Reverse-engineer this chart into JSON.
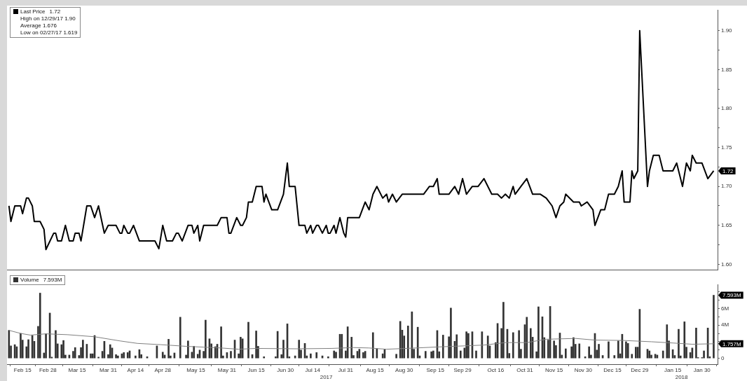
{
  "chart_data": [
    {
      "type": "line",
      "legend": "top left",
      "tick_labels": "y",
      "xlim": [
        "2017-02-07",
        "2018-02-07"
      ],
      "ylim": [
        1.593,
        1.926
      ],
      "yticks": [
        {
          "value": 1.6,
          "label": "1.60"
        },
        {
          "value": 1.625,
          "label": null
        },
        {
          "value": 1.65,
          "label": "1.65"
        },
        {
          "value": 1.675,
          "label": null
        },
        {
          "value": 1.7,
          "label": "1.70"
        },
        {
          "value": 1.725,
          "label": null
        },
        {
          "value": 1.75,
          "label": "1.75"
        },
        {
          "value": 1.775,
          "label": null
        },
        {
          "value": 1.8,
          "label": "1.80"
        },
        {
          "value": 1.825,
          "label": null
        },
        {
          "value": 1.85,
          "label": "1.85"
        },
        {
          "value": 1.875,
          "label": null
        },
        {
          "value": 1.9,
          "label": "1.90"
        }
      ],
      "annotations": [
        {
          "text": "1.72",
          "x": "2018-02-05",
          "y": 1.72
        },
        "1.72",
        "High on 12/29/17 1.90",
        "Average 1.676",
        "Low on 02/27/17 1.619"
      ],
      "series": [
        {
          "name": "Last Price",
          "color": "#000000",
          "x": [
            "2017-02-08",
            "2017-02-09",
            "2017-02-11",
            "2017-02-14",
            "2017-02-15",
            "2017-02-17",
            "2017-02-18",
            "2017-02-20",
            "2017-02-21",
            "2017-02-24",
            "2017-02-26",
            "2017-02-27",
            "2017-03-03",
            "2017-03-04",
            "2017-03-05",
            "2017-03-07",
            "2017-03-09",
            "2017-03-11",
            "2017-03-13",
            "2017-03-14",
            "2017-03-16",
            "2017-03-17",
            "2017-03-20",
            "2017-03-22",
            "2017-03-24",
            "2017-03-26",
            "2017-03-29",
            "2017-03-31",
            "2017-04-04",
            "2017-04-06",
            "2017-04-07",
            "2017-04-08",
            "2017-04-10",
            "2017-04-11",
            "2017-04-13",
            "2017-04-16",
            "2017-04-24",
            "2017-04-26",
            "2017-04-28",
            "2017-04-30",
            "2017-05-03",
            "2017-05-05",
            "2017-05-06",
            "2017-05-08",
            "2017-05-11",
            "2017-05-13",
            "2017-05-14",
            "2017-05-16",
            "2017-05-17",
            "2017-05-19",
            "2017-05-26",
            "2017-05-28",
            "2017-05-31",
            "2017-06-01",
            "2017-06-02",
            "2017-06-05",
            "2017-06-07",
            "2017-06-08",
            "2017-06-10",
            "2017-06-11",
            "2017-06-13",
            "2017-06-15",
            "2017-06-18",
            "2017-06-19",
            "2017-06-20",
            "2017-06-23",
            "2017-06-26",
            "2017-06-29",
            "2017-07-01",
            "2017-07-02",
            "2017-07-05",
            "2017-07-07",
            "2017-07-10",
            "2017-07-11",
            "2017-07-13",
            "2017-07-14",
            "2017-07-16",
            "2017-07-17",
            "2017-07-19",
            "2017-07-21",
            "2017-07-22",
            "2017-07-23",
            "2017-07-25",
            "2017-07-26",
            "2017-07-28",
            "2017-07-30",
            "2017-07-31",
            "2017-08-01",
            "2017-08-07",
            "2017-08-10",
            "2017-08-12",
            "2017-08-14",
            "2017-08-16",
            "2017-08-19",
            "2017-08-21",
            "2017-08-22",
            "2017-08-24",
            "2017-08-26",
            "2017-08-29",
            "2017-09-01",
            "2017-09-05",
            "2017-09-09",
            "2017-09-12",
            "2017-09-14",
            "2017-09-16",
            "2017-09-17",
            "2017-09-22",
            "2017-09-25",
            "2017-09-27",
            "2017-09-29",
            "2017-10-01",
            "2017-10-04",
            "2017-10-07",
            "2017-10-10",
            "2017-10-14",
            "2017-10-17",
            "2017-10-19",
            "2017-10-21",
            "2017-10-23",
            "2017-10-25",
            "2017-10-26",
            "2017-10-29",
            "2017-11-01",
            "2017-11-04",
            "2017-11-08",
            "2017-11-11",
            "2017-11-14",
            "2017-11-16",
            "2017-11-18",
            "2017-11-20",
            "2017-11-21",
            "2017-11-25",
            "2017-11-28",
            "2017-11-29",
            "2017-12-02",
            "2017-12-05",
            "2017-12-06",
            "2017-12-09",
            "2017-12-11",
            "2017-12-13",
            "2017-12-16",
            "2017-12-18",
            "2017-12-20",
            "2017-12-21",
            "2017-12-24",
            "2017-12-25",
            "2017-12-26",
            "2017-12-28",
            "2017-12-29",
            "2018-01-02",
            "2018-01-03",
            "2018-01-05",
            "2018-01-08",
            "2018-01-10",
            "2018-01-15",
            "2018-01-17",
            "2018-01-18",
            "2018-01-20",
            "2018-01-22",
            "2018-01-24",
            "2018-01-25",
            "2018-01-27",
            "2018-01-30",
            "2018-02-02",
            "2018-02-05"
          ],
          "values": [
            1.675,
            1.655,
            1.675,
            1.675,
            1.665,
            1.685,
            1.685,
            1.675,
            1.655,
            1.655,
            1.645,
            1.619,
            1.64,
            1.64,
            1.63,
            1.63,
            1.65,
            1.63,
            1.63,
            1.64,
            1.64,
            1.63,
            1.675,
            1.675,
            1.66,
            1.675,
            1.64,
            1.65,
            1.65,
            1.64,
            1.64,
            1.65,
            1.64,
            1.64,
            1.65,
            1.63,
            1.63,
            1.62,
            1.65,
            1.63,
            1.63,
            1.64,
            1.64,
            1.63,
            1.65,
            1.65,
            1.64,
            1.65,
            1.63,
            1.65,
            1.65,
            1.66,
            1.66,
            1.64,
            1.64,
            1.66,
            1.65,
            1.65,
            1.66,
            1.68,
            1.68,
            1.7,
            1.7,
            1.68,
            1.69,
            1.67,
            1.67,
            1.69,
            1.73,
            1.7,
            1.7,
            1.65,
            1.65,
            1.64,
            1.65,
            1.64,
            1.65,
            1.65,
            1.64,
            1.65,
            1.64,
            1.64,
            1.65,
            1.64,
            1.66,
            1.64,
            1.635,
            1.66,
            1.66,
            1.68,
            1.67,
            1.69,
            1.7,
            1.685,
            1.69,
            1.68,
            1.69,
            1.68,
            1.69,
            1.69,
            1.69,
            1.69,
            1.7,
            1.7,
            1.71,
            1.69,
            1.69,
            1.7,
            1.69,
            1.71,
            1.69,
            1.7,
            1.7,
            1.71,
            1.69,
            1.69,
            1.685,
            1.69,
            1.685,
            1.7,
            1.69,
            1.7,
            1.71,
            1.69,
            1.69,
            1.685,
            1.675,
            1.66,
            1.675,
            1.68,
            1.69,
            1.68,
            1.68,
            1.675,
            1.68,
            1.67,
            1.65,
            1.67,
            1.67,
            1.69,
            1.69,
            1.7,
            1.72,
            1.68,
            1.68,
            1.72,
            1.71,
            1.72,
            1.9,
            1.7,
            1.72,
            1.74,
            1.74,
            1.72,
            1.72,
            1.73,
            1.72,
            1.7,
            1.73,
            1.72,
            1.74,
            1.73,
            1.73,
            1.71,
            1.72
          ]
        }
      ]
    },
    {
      "type": "bar",
      "legend": "top left",
      "xlim": [
        "2017-02-07",
        "2018-02-07"
      ],
      "xticks": [
        {
          "value": "2017-02-15",
          "label": "Feb 15"
        },
        {
          "value": "2017-02-28",
          "label": "Feb 28"
        },
        {
          "value": "2017-03-15",
          "label": "Mar 15"
        },
        {
          "value": "2017-03-31",
          "label": "Mar 31"
        },
        {
          "value": "2017-04-14",
          "label": "Apr 14"
        },
        {
          "value": "2017-04-28",
          "label": "Apr 28"
        },
        {
          "value": "2017-05-15",
          "label": "May 15"
        },
        {
          "value": "2017-05-31",
          "label": "May 31"
        },
        {
          "value": "2017-06-15",
          "label": "Jun 15"
        },
        {
          "value": "2017-06-30",
          "label": "Jun 30"
        },
        {
          "value": "2017-07-14",
          "label": "Jul 14"
        },
        {
          "value": "2017-07-31",
          "label": "Jul 31"
        },
        {
          "value": "2017-08-15",
          "label": "Aug 15"
        },
        {
          "value": "2017-08-30",
          "label": "Aug 30"
        },
        {
          "value": "2017-09-15",
          "label": "Sep 15"
        },
        {
          "value": "2017-09-29",
          "label": "Sep 29"
        },
        {
          "value": "2017-10-16",
          "label": "Oct 16"
        },
        {
          "value": "2017-10-31",
          "label": "Oct 31"
        },
        {
          "value": "2017-11-15",
          "label": "Nov 15"
        },
        {
          "value": "2017-11-30",
          "label": "Nov 30"
        },
        {
          "value": "2017-12-15",
          "label": "Dec 15"
        },
        {
          "value": "2017-12-29",
          "label": "Dec 29"
        },
        {
          "value": "2018-01-15",
          "label": "Jan 15"
        },
        {
          "value": "2018-01-30",
          "label": "Jan 30"
        }
      ],
      "ylim": [
        -0.7,
        8.9
      ],
      "yticks": [
        {
          "value": 0,
          "label": "0"
        },
        {
          "value": 1,
          "label": null
        },
        {
          "value": 2,
          "label": null
        },
        {
          "value": 3,
          "label": null
        },
        {
          "value": 4,
          "label": "4M"
        },
        {
          "value": 5,
          "label": null
        },
        {
          "value": 6,
          "label": "6M"
        },
        {
          "value": 7,
          "label": null
        },
        {
          "value": 8,
          "label": null
        }
      ],
      "annotations": [
        {
          "text": "7.593M",
          "x": "2018-02-05",
          "y": 7.593
        },
        {
          "text": "1.757M",
          "x": "2018-02-05",
          "y": 1.757
        },
        "7.593M",
        "2017",
        "2018"
      ],
      "series": [
        {
          "name": "Volume",
          "color": "#333333",
          "x": [
            "2017-02-08",
            "2017-02-09",
            "2017-02-11",
            "2017-02-12",
            "2017-02-14",
            "2017-02-15",
            "2017-02-17",
            "2017-02-18",
            "2017-02-20",
            "2017-02-21",
            "2017-02-23",
            "2017-02-24",
            "2017-02-26",
            "2017-02-27",
            "2017-03-01",
            "2017-03-02",
            "2017-03-04",
            "2017-03-05",
            "2017-03-07",
            "2017-03-08",
            "2017-03-09",
            "2017-03-11",
            "2017-03-13",
            "2017-03-14",
            "2017-03-16",
            "2017-03-17",
            "2017-03-18",
            "2017-03-20",
            "2017-03-22",
            "2017-03-23",
            "2017-03-24",
            "2017-03-26",
            "2017-03-28",
            "2017-03-29",
            "2017-03-31",
            "2017-04-01",
            "2017-04-02",
            "2017-04-04",
            "2017-04-05",
            "2017-04-07",
            "2017-04-08",
            "2017-04-10",
            "2017-04-11",
            "2017-04-14",
            "2017-04-16",
            "2017-04-17",
            "2017-04-20",
            "2017-04-25",
            "2017-04-28",
            "2017-04-29",
            "2017-05-01",
            "2017-05-02",
            "2017-05-04",
            "2017-05-07",
            "2017-05-10",
            "2017-05-11",
            "2017-05-13",
            "2017-05-14",
            "2017-05-16",
            "2017-05-17",
            "2017-05-19",
            "2017-05-20",
            "2017-05-22",
            "2017-05-23",
            "2017-05-25",
            "2017-05-26",
            "2017-05-28",
            "2017-05-29",
            "2017-05-31",
            "2017-06-02",
            "2017-06-04",
            "2017-06-06",
            "2017-06-07",
            "2017-06-08",
            "2017-06-11",
            "2017-06-13",
            "2017-06-15",
            "2017-06-16",
            "2017-06-19",
            "2017-06-25",
            "2017-06-26",
            "2017-06-28",
            "2017-06-29",
            "2017-07-01",
            "2017-07-02",
            "2017-07-05",
            "2017-07-07",
            "2017-07-08",
            "2017-07-10",
            "2017-07-11",
            "2017-07-13",
            "2017-07-16",
            "2017-07-19",
            "2017-07-22",
            "2017-07-25",
            "2017-07-26",
            "2017-07-28",
            "2017-07-29",
            "2017-07-31",
            "2017-08-01",
            "2017-08-03",
            "2017-08-04",
            "2017-08-06",
            "2017-08-07",
            "2017-08-09",
            "2017-08-10",
            "2017-08-14",
            "2017-08-16",
            "2017-08-19",
            "2017-08-20",
            "2017-08-26",
            "2017-08-28",
            "2017-08-29",
            "2017-08-30",
            "2017-09-01",
            "2017-09-03",
            "2017-09-04",
            "2017-09-06",
            "2017-09-07",
            "2017-09-10",
            "2017-09-13",
            "2017-09-14",
            "2017-09-16",
            "2017-09-17",
            "2017-09-19",
            "2017-09-22",
            "2017-09-23",
            "2017-09-25",
            "2017-09-26",
            "2017-09-28",
            "2017-09-30",
            "2017-10-01",
            "2017-10-02",
            "2017-10-04",
            "2017-10-06",
            "2017-10-09",
            "2017-10-12",
            "2017-10-13",
            "2017-10-16",
            "2017-10-17",
            "2017-10-19",
            "2017-10-20",
            "2017-10-22",
            "2017-10-23",
            "2017-10-25",
            "2017-10-28",
            "2017-10-29",
            "2017-10-31",
            "2017-11-01",
            "2017-11-03",
            "2017-11-04",
            "2017-11-06",
            "2017-11-07",
            "2017-11-09",
            "2017-11-10",
            "2017-11-12",
            "2017-11-13",
            "2017-11-15",
            "2017-11-16",
            "2017-11-18",
            "2017-11-19",
            "2017-11-21",
            "2017-11-24",
            "2017-11-25",
            "2017-11-26",
            "2017-11-28",
            "2017-12-01",
            "2017-12-03",
            "2017-12-04",
            "2017-12-06",
            "2017-12-07",
            "2017-12-08",
            "2017-12-10",
            "2017-12-13",
            "2017-12-16",
            "2017-12-18",
            "2017-12-19",
            "2017-12-20",
            "2017-12-22",
            "2017-12-23",
            "2017-12-25",
            "2017-12-27",
            "2017-12-28",
            "2017-12-29",
            "2018-01-02",
            "2018-01-03",
            "2018-01-04",
            "2018-01-06",
            "2018-01-07",
            "2018-01-10",
            "2018-01-12",
            "2018-01-13",
            "2018-01-15",
            "2018-01-16",
            "2018-01-18",
            "2018-01-19",
            "2018-01-21",
            "2018-01-22",
            "2018-01-24",
            "2018-01-25",
            "2018-01-27",
            "2018-01-28",
            "2018-01-30",
            "2018-01-31",
            "2018-02-02",
            "2018-02-03",
            "2018-02-05"
          ],
          "values": [
            3.37,
            1.5,
            1.65,
            1.4,
            3.0,
            2.2,
            1.4,
            2.25,
            2.75,
            2.05,
            3.85,
            7.85,
            0.65,
            2.95,
            5.45,
            0.15,
            3.35,
            1.75,
            1.65,
            2.15,
            0.4,
            0.4,
            0.85,
            1.3,
            0.35,
            1.3,
            2.2,
            1.7,
            0.55,
            0.55,
            2.75,
            0.15,
            0.85,
            2.05,
            0.45,
            1.65,
            1.25,
            0.45,
            0.3,
            0.55,
            0.7,
            0.7,
            0.9,
            0.3,
            1.05,
            0.45,
            0.2,
            1.5,
            0.75,
            0.4,
            2.3,
            0.3,
            0.65,
            4.95,
            0.4,
            2.1,
            0.75,
            1.45,
            0.5,
            1.0,
            0.85,
            4.6,
            2.35,
            1.75,
            1.4,
            1.7,
            3.8,
            0.3,
            0.7,
            0.85,
            2.2,
            0.55,
            2.55,
            2.35,
            4.35,
            0.45,
            3.3,
            1.45,
            0.2,
            0.2,
            3.25,
            0.45,
            2.2,
            4.15,
            0.2,
            0.3,
            2.2,
            1.0,
            1.8,
            0.3,
            0.55,
            0.7,
            0.3,
            0.2,
            0.9,
            0.75,
            2.9,
            2.9,
            0.9,
            3.8,
            2.55,
            0.35,
            0.85,
            1.1,
            0.7,
            0.85,
            3.1,
            1.15,
            0.55,
            1.05,
            0.5,
            4.45,
            3.4,
            2.7,
            3.9,
            5.6,
            1.1,
            3.75,
            0.3,
            0.85,
            0.8,
            0.9,
            3.35,
            0.8,
            2.8,
            2.6,
            6.05,
            2.05,
            2.85,
            0.9,
            1.25,
            3.2,
            3.0,
            3.2,
            0.9,
            3.2,
            2.7,
            1.5,
            1.9,
            4.2,
            3.6,
            6.75,
            3.5,
            0.6,
            3.1,
            3.35,
            1.1,
            4.05,
            4.95,
            3.6,
            2.55,
            0.8,
            6.2,
            5.0,
            2.5,
            2.2,
            6.25,
            2.1,
            1.55,
            3.05,
            0.4,
            1.15,
            1.4,
            2.5,
            1.7,
            1.75,
            0.2,
            1.4,
            0.4,
            3.0,
            1.0,
            1.7,
            0.35,
            2.0,
            0.35,
            2.1,
            0.55,
            2.9,
            2.0,
            1.8,
            0.5,
            1.35,
            1.35,
            5.9,
            1.1,
            0.9,
            0.4,
            0.5,
            0.4,
            0.9,
            4.05,
            2.1,
            1.05,
            0.35,
            3.5,
            0.3,
            4.4,
            1.35,
            0.7,
            1.25,
            3.65,
            0.1,
            0.1,
            0.9,
            3.65,
            0.2,
            7.593
          ]
        },
        {
          "type": "line",
          "color": "#808080",
          "x": [
            "2017-02-08",
            "2017-02-14",
            "2017-02-19",
            "2017-02-27",
            "2017-03-10",
            "2017-03-24",
            "2017-04-06",
            "2017-04-15",
            "2017-04-27",
            "2017-05-10",
            "2017-05-28",
            "2017-06-06",
            "2017-06-15",
            "2017-07-06",
            "2017-07-24",
            "2017-08-04",
            "2017-08-12",
            "2017-08-21",
            "2017-09-05",
            "2017-09-19",
            "2017-10-10",
            "2017-10-21",
            "2017-11-01",
            "2017-11-11",
            "2017-11-26",
            "2017-12-06",
            "2017-12-21",
            "2018-01-04",
            "2018-01-15",
            "2018-01-25",
            "2018-02-05"
          ],
          "values": [
            3.37,
            3.0,
            2.8,
            2.95,
            2.85,
            2.6,
            2.1,
            1.8,
            1.65,
            1.45,
            1.25,
            1.1,
            1.2,
            1.15,
            1.2,
            1.3,
            1.25,
            1.1,
            1.25,
            1.4,
            1.6,
            1.9,
            1.9,
            2.3,
            2.4,
            2.2,
            2.15,
            2.0,
            1.85,
            1.7,
            1.757
          ]
        }
      ]
    }
  ]
}
